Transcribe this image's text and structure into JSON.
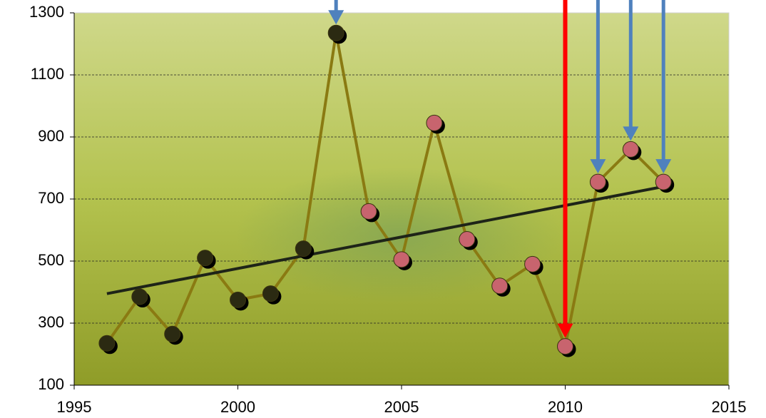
{
  "chart_data": {
    "type": "line",
    "x": [
      1996,
      1997,
      1998,
      1999,
      2000,
      2001,
      2002,
      2003,
      2004,
      2005,
      2006,
      2007,
      2008,
      2009,
      2010,
      2011,
      2012,
      2013
    ],
    "values": [
      235,
      385,
      265,
      510,
      375,
      395,
      540,
      1235,
      660,
      505,
      945,
      570,
      420,
      490,
      225,
      755,
      860,
      755
    ],
    "line_color": "#8a7a12",
    "marker_colors": [
      "#2b2a12",
      "#2b2a12",
      "#2b2a12",
      "#2b2a12",
      "#2b2a12",
      "#2b2a12",
      "#2b2a12",
      "#2b2a12",
      "#c8646e",
      "#c8646e",
      "#c8646e",
      "#c8646e",
      "#c8646e",
      "#c8646e",
      "#c8646e",
      "#c8646e",
      "#c8646e",
      "#c8646e"
    ],
    "trendline": {
      "x": [
        1996,
        2013
      ],
      "values": [
        395,
        740
      ],
      "color": "#1e2418"
    },
    "arrows": [
      {
        "x": 2003,
        "color": "#4f81bd"
      },
      {
        "x": 2010,
        "color": "#ff0000"
      },
      {
        "x": 2011,
        "color": "#4f81bd"
      },
      {
        "x": 2012,
        "color": "#4f81bd"
      },
      {
        "x": 2013,
        "color": "#4f81bd"
      }
    ],
    "xlim": [
      1995,
      2015
    ],
    "xticks": [
      1995,
      2000,
      2005,
      2010,
      2015
    ],
    "ylim": [
      100,
      1300
    ],
    "yticks": [
      100,
      300,
      500,
      700,
      900,
      1100,
      1300
    ],
    "grid": true
  }
}
